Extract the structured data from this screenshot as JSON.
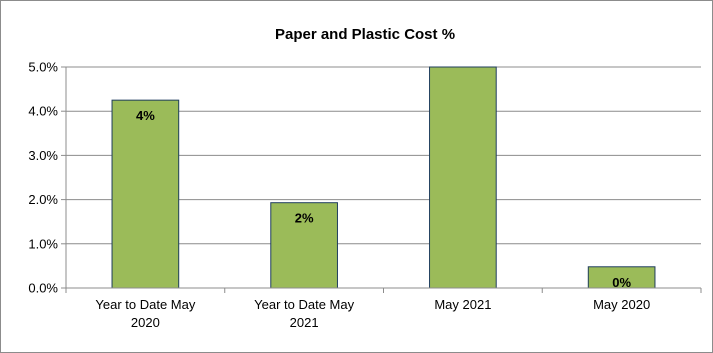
{
  "chart_data": {
    "type": "bar",
    "title": "Paper and Plastic Cost  %",
    "categories": [
      [
        "Year to Date May",
        "2020"
      ],
      [
        "Year to Date May",
        "2021"
      ],
      [
        "May 2021"
      ],
      [
        "May 2020"
      ]
    ],
    "values": [
      4.25,
      1.93,
      5.0,
      0.48
    ],
    "data_labels": [
      "4%",
      "2%",
      "",
      "0%"
    ],
    "ylim": [
      0,
      5
    ],
    "yticks": [
      0,
      1,
      2,
      3,
      4,
      5
    ],
    "ytick_labels": [
      "0.0%",
      "1.0%",
      "2.0%",
      "3.0%",
      "4.0%",
      "5.0%"
    ],
    "grid": true,
    "legend": "none",
    "bar_color": "#9bbb59",
    "bar_edge_color": "#1f3d5c"
  }
}
